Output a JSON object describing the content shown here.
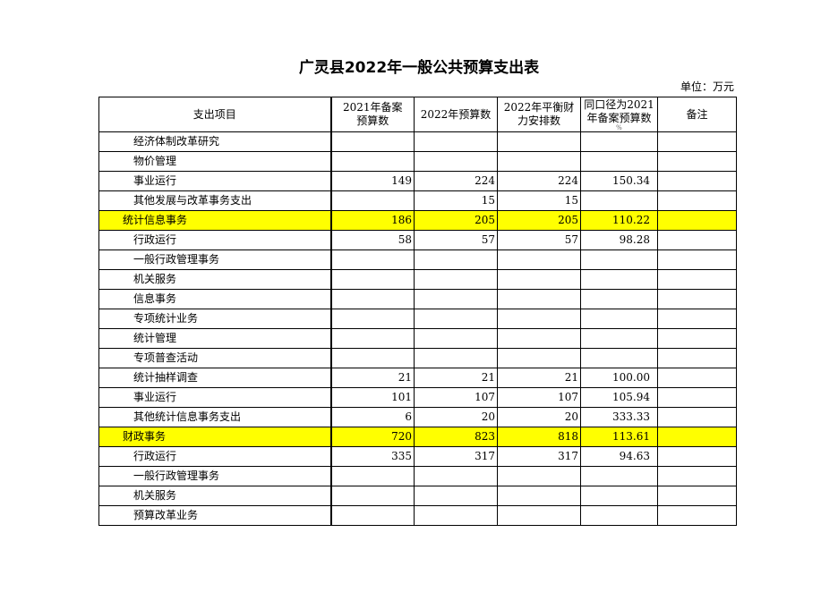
{
  "title": "广灵县2022年一般公共预算支出表",
  "unit": "单位：万元",
  "columns": [
    "支出项目",
    "2021年备案预算数",
    "2022年预算数",
    "2022年平衡财力安排数",
    "同口径为2021年备案预算数",
    "备注"
  ],
  "column_header_lines": [
    [
      "支出项目"
    ],
    [
      "2021年备案",
      "预算数"
    ],
    [
      "2022年预算数"
    ],
    [
      "2022年平衡财",
      "力安排数"
    ],
    [
      "同口径为2021",
      "年备案预算数"
    ],
    [
      "备注"
    ]
  ],
  "highlight_color": "#ffff00",
  "rows": [
    {
      "name": "经济体制改革研究",
      "section": false,
      "v2021": "",
      "v2022": "",
      "balance": "",
      "ratio": "",
      "note": ""
    },
    {
      "name": "物价管理",
      "section": false,
      "v2021": "",
      "v2022": "",
      "balance": "",
      "ratio": "",
      "note": ""
    },
    {
      "name": "事业运行",
      "section": false,
      "v2021": "149",
      "v2022": "224",
      "balance": "224",
      "ratio": "150.34",
      "note": ""
    },
    {
      "name": "其他发展与改革事务支出",
      "section": false,
      "v2021": "",
      "v2022": "15",
      "balance": "15",
      "ratio": "",
      "note": ""
    },
    {
      "name": "统计信息事务",
      "section": true,
      "v2021": "186",
      "v2022": "205",
      "balance": "205",
      "ratio": "110.22",
      "note": ""
    },
    {
      "name": "行政运行",
      "section": false,
      "v2021": "58",
      "v2022": "57",
      "balance": "57",
      "ratio": "98.28",
      "note": ""
    },
    {
      "name": "一般行政管理事务",
      "section": false,
      "v2021": "",
      "v2022": "",
      "balance": "",
      "ratio": "",
      "note": ""
    },
    {
      "name": "机关服务",
      "section": false,
      "v2021": "",
      "v2022": "",
      "balance": "",
      "ratio": "",
      "note": ""
    },
    {
      "name": "信息事务",
      "section": false,
      "v2021": "",
      "v2022": "",
      "balance": "",
      "ratio": "",
      "note": ""
    },
    {
      "name": "专项统计业务",
      "section": false,
      "v2021": "",
      "v2022": "",
      "balance": "",
      "ratio": "",
      "note": ""
    },
    {
      "name": "统计管理",
      "section": false,
      "v2021": "",
      "v2022": "",
      "balance": "",
      "ratio": "",
      "note": ""
    },
    {
      "name": "专项普查活动",
      "section": false,
      "v2021": "",
      "v2022": "",
      "balance": "",
      "ratio": "",
      "note": ""
    },
    {
      "name": "统计抽样调查",
      "section": false,
      "v2021": "21",
      "v2022": "21",
      "balance": "21",
      "ratio": "100.00",
      "note": ""
    },
    {
      "name": "事业运行",
      "section": false,
      "v2021": "101",
      "v2022": "107",
      "balance": "107",
      "ratio": "105.94",
      "note": ""
    },
    {
      "name": "其他统计信息事务支出",
      "section": false,
      "v2021": "6",
      "v2022": "20",
      "balance": "20",
      "ratio": "333.33",
      "note": ""
    },
    {
      "name": "财政事务",
      "section": true,
      "v2021": "720",
      "v2022": "823",
      "balance": "818",
      "ratio": "113.61",
      "note": ""
    },
    {
      "name": "行政运行",
      "section": false,
      "v2021": "335",
      "v2022": "317",
      "balance": "317",
      "ratio": "94.63",
      "note": ""
    },
    {
      "name": "一般行政管理事务",
      "section": false,
      "v2021": "",
      "v2022": "",
      "balance": "",
      "ratio": "",
      "note": ""
    },
    {
      "name": "机关服务",
      "section": false,
      "v2021": "",
      "v2022": "",
      "balance": "",
      "ratio": "",
      "note": ""
    },
    {
      "name": "预算改革业务",
      "section": false,
      "v2021": "",
      "v2022": "",
      "balance": "",
      "ratio": "",
      "note": ""
    }
  ]
}
